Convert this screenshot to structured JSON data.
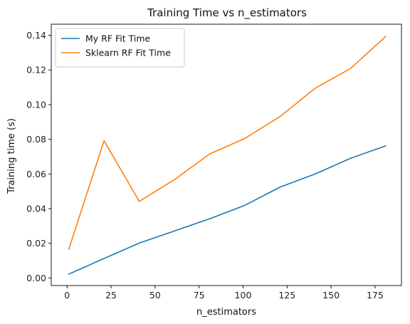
{
  "chart_data": {
    "type": "line",
    "title": "Training Time vs n_estimators",
    "xlabel": "n_estimators",
    "ylabel": "Training time (s)",
    "xlim": [
      -9,
      190
    ],
    "ylim": [
      -0.0044,
      0.1464
    ],
    "xticks": [
      0,
      25,
      50,
      75,
      100,
      125,
      150,
      175
    ],
    "xtick_labels": [
      "0",
      "25",
      "50",
      "75",
      "100",
      "125",
      "150",
      "175"
    ],
    "yticks": [
      0.0,
      0.02,
      0.04,
      0.06,
      0.08,
      0.1,
      0.12,
      0.14
    ],
    "ytick_labels": [
      "0.00",
      "0.02",
      "0.04",
      "0.06",
      "0.08",
      "0.10",
      "0.12",
      "0.14"
    ],
    "grid": false,
    "legend_position": "top-left",
    "x": [
      1,
      21,
      41,
      61,
      81,
      101,
      121,
      141,
      161,
      181
    ],
    "series": [
      {
        "name": "My RF Fit Time",
        "color": "#1f77b4",
        "values": [
          0.0022,
          0.0112,
          0.0201,
          0.0271,
          0.0341,
          0.0419,
          0.0524,
          0.06,
          0.069,
          0.0762
        ]
      },
      {
        "name": "Sklearn RF Fit Time",
        "color": "#ff7f0e",
        "values": [
          0.0166,
          0.0792,
          0.0442,
          0.0567,
          0.0715,
          0.0805,
          0.0931,
          0.1095,
          0.1208,
          0.1393
        ]
      }
    ]
  }
}
